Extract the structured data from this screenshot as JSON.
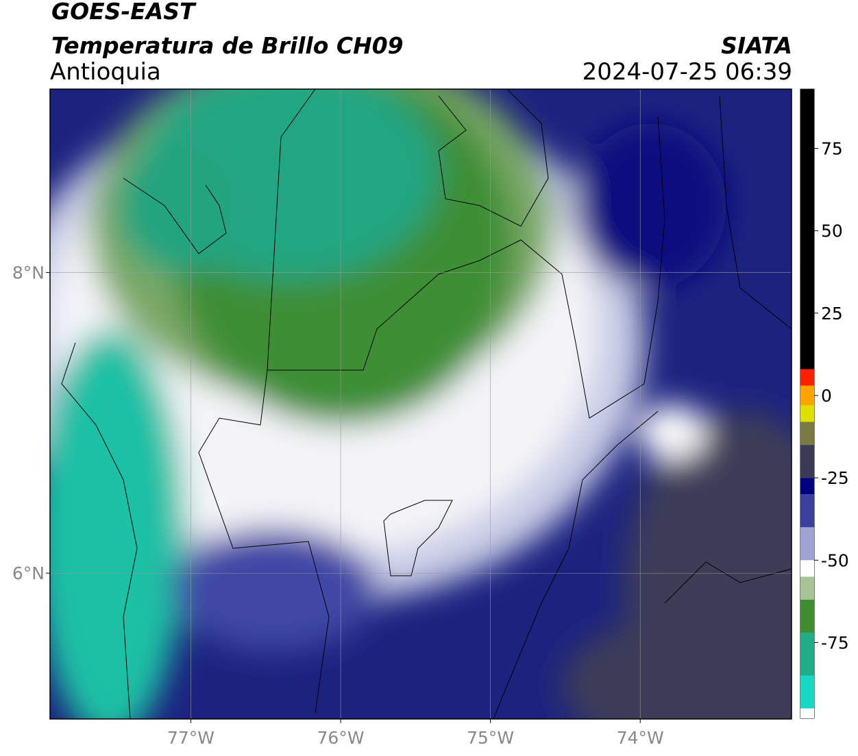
{
  "header": {
    "title": "GOES-EAST",
    "subtitle": "Temperatura de Brillo CH09",
    "region": "Antioquia",
    "source": "SIATA",
    "datetime": "2024-07-25 06:39"
  },
  "map": {
    "lonlim": [
      -77.94,
      -72.99
    ],
    "latlim": [
      5.03,
      9.22
    ],
    "lonticks": [
      {
        "value": -77,
        "label": "77°W"
      },
      {
        "value": -76,
        "label": "76°W"
      },
      {
        "value": -75,
        "label": "75°W"
      },
      {
        "value": -74,
        "label": "74°W"
      }
    ],
    "latticks": [
      {
        "value": 8,
        "label": "8°N"
      },
      {
        "value": 6,
        "label": "6°N"
      }
    ],
    "grid": true
  },
  "colorbar": {
    "lim": [
      -98,
      93
    ],
    "ticks": [
      75,
      50,
      25,
      0,
      -25,
      -50,
      -75
    ],
    "bands": [
      {
        "from": -98,
        "to": -95,
        "color": "#ffffff"
      },
      {
        "from": -95,
        "to": -85,
        "color": "#16d9c4"
      },
      {
        "from": -85,
        "to": -72,
        "color": "#1fae88"
      },
      {
        "from": -72,
        "to": -62,
        "color": "#3f8f32"
      },
      {
        "from": -62,
        "to": -55,
        "color": "#a5c394"
      },
      {
        "from": -55,
        "to": -50,
        "color": "#ffffff"
      },
      {
        "from": -50,
        "to": -40,
        "color": "#9fa3d4"
      },
      {
        "from": -40,
        "to": -30,
        "color": "#3b3f9e"
      },
      {
        "from": -30,
        "to": -25,
        "color": "#000080"
      },
      {
        "from": -25,
        "to": -15,
        "color": "#3a3a55"
      },
      {
        "from": -15,
        "to": -8,
        "color": "#7a7a40"
      },
      {
        "from": -8,
        "to": -3,
        "color": "#e0e000"
      },
      {
        "from": -3,
        "to": 3,
        "color": "#ffa500"
      },
      {
        "from": 3,
        "to": 8,
        "color": "#ff2000"
      },
      {
        "from": 8,
        "to": 93,
        "color": "#000000"
      }
    ]
  }
}
